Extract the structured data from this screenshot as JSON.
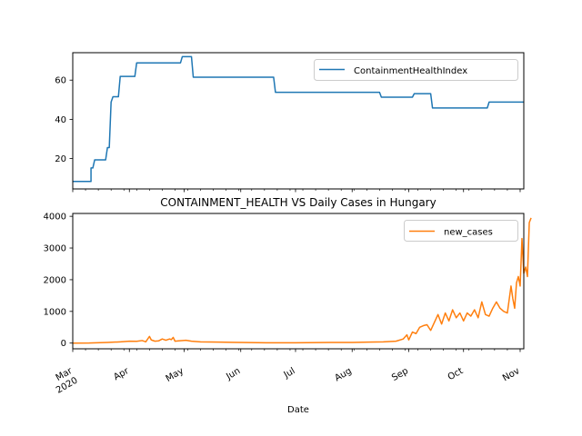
{
  "chart_data": [
    {
      "type": "line",
      "title": "",
      "xlabel": "",
      "ylabel": "",
      "ylim": [
        4.5,
        74
      ],
      "yticks": [
        20,
        40,
        60
      ],
      "grid": false,
      "legend_position": "upper-right",
      "series": [
        {
          "name": "ContainmentHealthIndex",
          "color": "#1f77b4",
          "step_points": [
            [
              "2020-03-01",
              8.3
            ],
            [
              "2020-03-11",
              8.3
            ],
            [
              "2020-03-11",
              15.2
            ],
            [
              "2020-03-12",
              15.2
            ],
            [
              "2020-03-13",
              19.3
            ],
            [
              "2020-03-19",
              19.3
            ],
            [
              "2020-03-20",
              25.6
            ],
            [
              "2020-03-21",
              25.6
            ],
            [
              "2020-03-22",
              48.8
            ],
            [
              "2020-03-23",
              51.5
            ],
            [
              "2020-03-26",
              51.5
            ],
            [
              "2020-03-27",
              61.9
            ],
            [
              "2020-04-04",
              61.9
            ],
            [
              "2020-04-05",
              68.8
            ],
            [
              "2020-04-29",
              68.8
            ],
            [
              "2020-04-30",
              72.0
            ],
            [
              "2020-05-05",
              72.0
            ],
            [
              "2020-05-06",
              61.5
            ],
            [
              "2020-06-19",
              61.5
            ],
            [
              "2020-06-20",
              53.8
            ],
            [
              "2020-08-16",
              53.8
            ],
            [
              "2020-08-17",
              51.3
            ],
            [
              "2020-09-03",
              51.3
            ],
            [
              "2020-09-04",
              53.1
            ],
            [
              "2020-09-13",
              53.1
            ],
            [
              "2020-09-14",
              45.8
            ],
            [
              "2020-10-14",
              45.8
            ],
            [
              "2020-10-15",
              48.8
            ],
            [
              "2020-11-03",
              48.8
            ]
          ]
        }
      ]
    },
    {
      "type": "line",
      "title": "CONTAINMENT_HEALTH VS Daily Cases in Hungary",
      "xlabel": "Date",
      "ylabel": "",
      "ylim": [
        -180,
        4090
      ],
      "yticks": [
        0,
        1000,
        2000,
        3000,
        4000
      ],
      "grid": false,
      "legend_position": "upper-right",
      "series": [
        {
          "name": "new_cases",
          "color": "#ff7f0e",
          "points": [
            [
              "2020-03-01",
              0
            ],
            [
              "2020-03-10",
              3
            ],
            [
              "2020-03-20",
              20
            ],
            [
              "2020-03-27",
              40
            ],
            [
              "2020-04-01",
              60
            ],
            [
              "2020-04-05",
              55
            ],
            [
              "2020-04-08",
              80
            ],
            [
              "2020-04-10",
              40
            ],
            [
              "2020-04-12",
              210
            ],
            [
              "2020-04-13",
              100
            ],
            [
              "2020-04-15",
              60
            ],
            [
              "2020-04-17",
              70
            ],
            [
              "2020-04-19",
              130
            ],
            [
              "2020-04-21",
              90
            ],
            [
              "2020-04-23",
              130
            ],
            [
              "2020-04-24",
              110
            ],
            [
              "2020-04-25",
              180
            ],
            [
              "2020-04-26",
              60
            ],
            [
              "2020-04-28",
              70
            ],
            [
              "2020-05-02",
              90
            ],
            [
              "2020-05-05",
              60
            ],
            [
              "2020-05-10",
              40
            ],
            [
              "2020-05-20",
              30
            ],
            [
              "2020-06-01",
              20
            ],
            [
              "2020-06-15",
              10
            ],
            [
              "2020-07-01",
              10
            ],
            [
              "2020-07-20",
              20
            ],
            [
              "2020-08-01",
              20
            ],
            [
              "2020-08-10",
              30
            ],
            [
              "2020-08-18",
              40
            ],
            [
              "2020-08-25",
              60
            ],
            [
              "2020-08-29",
              130
            ],
            [
              "2020-08-31",
              260
            ],
            [
              "2020-09-01",
              100
            ],
            [
              "2020-09-03",
              350
            ],
            [
              "2020-09-05",
              300
            ],
            [
              "2020-09-07",
              500
            ],
            [
              "2020-09-09",
              550
            ],
            [
              "2020-09-11",
              580
            ],
            [
              "2020-09-13",
              400
            ],
            [
              "2020-09-15",
              650
            ],
            [
              "2020-09-17",
              900
            ],
            [
              "2020-09-19",
              600
            ],
            [
              "2020-09-21",
              950
            ],
            [
              "2020-09-23",
              700
            ],
            [
              "2020-09-25",
              1050
            ],
            [
              "2020-09-27",
              800
            ],
            [
              "2020-09-29",
              950
            ],
            [
              "2020-10-01",
              700
            ],
            [
              "2020-10-03",
              950
            ],
            [
              "2020-10-05",
              850
            ],
            [
              "2020-10-07",
              1050
            ],
            [
              "2020-10-09",
              800
            ],
            [
              "2020-10-11",
              1300
            ],
            [
              "2020-10-13",
              900
            ],
            [
              "2020-10-15",
              850
            ],
            [
              "2020-10-17",
              1100
            ],
            [
              "2020-10-19",
              1300
            ],
            [
              "2020-10-21",
              1100
            ],
            [
              "2020-10-23",
              1000
            ],
            [
              "2020-10-25",
              950
            ],
            [
              "2020-10-27",
              1800
            ],
            [
              "2020-10-28",
              1400
            ],
            [
              "2020-10-29",
              1100
            ],
            [
              "2020-10-30",
              1900
            ],
            [
              "2020-10-31",
              2100
            ],
            [
              "2020-11-01",
              1800
            ],
            [
              "2020-11-02",
              3300
            ],
            [
              "2020-11-03",
              2200
            ],
            [
              "2020-11-04",
              2400
            ],
            [
              "2020-11-05",
              2100
            ],
            [
              "2020-11-06",
              3800
            ],
            [
              "2020-11-07",
              3950
            ]
          ]
        }
      ]
    }
  ],
  "x_axis": {
    "range": [
      "2020-03-01",
      "2020-11-03"
    ],
    "major_ticks": [
      {
        "date": "2020-03-01",
        "label": "Mar",
        "sublabel": "2020"
      },
      {
        "date": "2020-04-01",
        "label": "Apr"
      },
      {
        "date": "2020-05-01",
        "label": "May"
      },
      {
        "date": "2020-06-01",
        "label": "Jun"
      },
      {
        "date": "2020-07-01",
        "label": "Jul"
      },
      {
        "date": "2020-08-01",
        "label": "Aug"
      },
      {
        "date": "2020-09-01",
        "label": "Sep"
      },
      {
        "date": "2020-10-01",
        "label": "Oct"
      },
      {
        "date": "2020-11-01",
        "label": "Nov"
      }
    ],
    "minor_tick_interval_days": 7
  }
}
